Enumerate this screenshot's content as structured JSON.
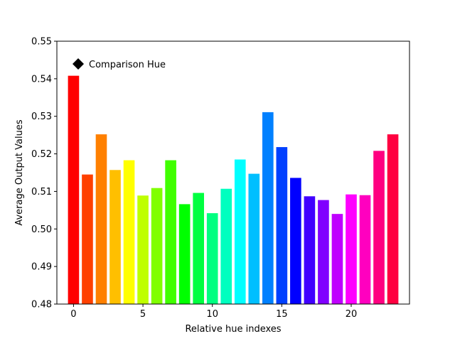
{
  "chart_data": {
    "type": "bar",
    "title": "",
    "xlabel": "Relative hue indexes",
    "ylabel": "Average Output Values",
    "xlim": [
      -1.2,
      24.2
    ],
    "ylim": [
      0.48,
      0.55
    ],
    "xticks": [
      0,
      5,
      10,
      15,
      20
    ],
    "yticks": [
      0.48,
      0.49,
      0.5,
      0.51,
      0.52,
      0.53,
      0.54,
      0.55
    ],
    "ytick_labels": [
      "0.48",
      "0.49",
      "0.50",
      "0.51",
      "0.52",
      "0.53",
      "0.54",
      "0.55"
    ],
    "grid": false,
    "legend": {
      "placement": "top-left",
      "entries": [
        {
          "label": "Comparison Hue",
          "marker": "diamond",
          "color": "#000000"
        }
      ]
    },
    "x": [
      0,
      1,
      2,
      3,
      4,
      5,
      6,
      7,
      8,
      9,
      10,
      11,
      12,
      13,
      14,
      15,
      16,
      17,
      18,
      19,
      20,
      21,
      22,
      23
    ],
    "values": [
      0.5408,
      0.5145,
      0.5252,
      0.5157,
      0.5183,
      0.5089,
      0.5109,
      0.5183,
      0.5066,
      0.5096,
      0.5042,
      0.5107,
      0.5185,
      0.5147,
      0.5311,
      0.5218,
      0.5136,
      0.5087,
      0.5077,
      0.504,
      0.5092,
      0.509,
      0.5208,
      0.5252
    ],
    "colors": [
      "#ff0000",
      "#ff4000",
      "#ff8000",
      "#ffbf00",
      "#ffff00",
      "#bfff00",
      "#80ff00",
      "#40ff00",
      "#00ff00",
      "#00ff40",
      "#00ff80",
      "#00ffbf",
      "#00ffff",
      "#00bfff",
      "#0080ff",
      "#0040ff",
      "#0000ff",
      "#4000ff",
      "#8000ff",
      "#bf00ff",
      "#ff00ff",
      "#ff00bf",
      "#ff0080",
      "#ff0040"
    ]
  }
}
